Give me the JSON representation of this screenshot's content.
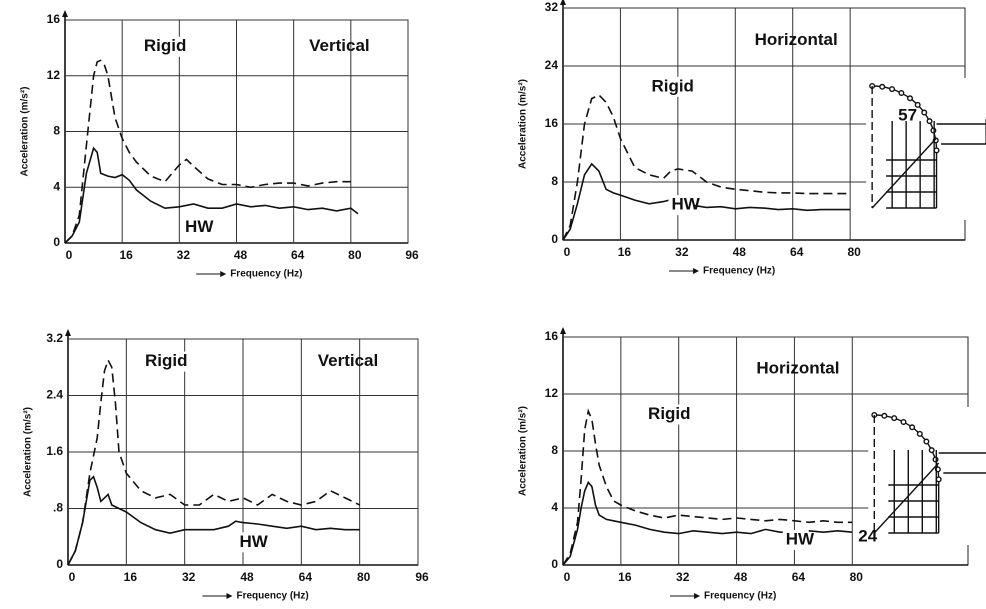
{
  "chart_data": [
    {
      "type": "line",
      "title": "Vertical",
      "xlabel": "Frequency (Hz)",
      "ylabel": "Acceleration (m/s²)",
      "xlim": [
        0,
        96
      ],
      "xticks": [
        0,
        16,
        32,
        48,
        64,
        80,
        96
      ],
      "ylim": [
        0,
        16
      ],
      "yticks": [
        0,
        4,
        8,
        12,
        16
      ],
      "grid": true,
      "series": [
        {
          "name": "Rigid",
          "color": "#111111",
          "linestyle": "dashed",
          "x": [
            0,
            2,
            4,
            6,
            8,
            9,
            10,
            11,
            12,
            14,
            16,
            18,
            20,
            24,
            28,
            32,
            34,
            36,
            40,
            44,
            48,
            52,
            56,
            60,
            64,
            68,
            72,
            76,
            80
          ],
          "values": [
            0,
            0.5,
            2,
            7,
            12,
            13,
            13.1,
            12.8,
            12,
            9,
            7.5,
            6.5,
            5.8,
            4.8,
            4.4,
            5.6,
            6,
            5.5,
            4.6,
            4.2,
            4.2,
            4.0,
            4.2,
            4.3,
            4.3,
            4.1,
            4.3,
            4.4,
            4.4
          ]
        },
        {
          "name": "HW",
          "color": "#111111",
          "linestyle": "solid",
          "x": [
            0,
            2,
            4,
            6,
            8,
            9,
            10,
            12,
            14,
            16,
            18,
            20,
            24,
            28,
            32,
            36,
            40,
            44,
            48,
            52,
            56,
            60,
            64,
            68,
            72,
            76,
            80,
            82
          ],
          "values": [
            0,
            0.5,
            1.5,
            5,
            6.8,
            6.5,
            5,
            4.8,
            4.7,
            4.9,
            4.5,
            3.8,
            3,
            2.5,
            2.6,
            2.8,
            2.5,
            2.5,
            2.8,
            2.6,
            2.7,
            2.5,
            2.6,
            2.4,
            2.5,
            2.3,
            2.5,
            2.1
          ]
        }
      ]
    },
    {
      "type": "line",
      "title": "Horizontal",
      "xlabel": "Frequency (Hz)",
      "ylabel": "Acceleration (m/s²)",
      "xlim": [
        0,
        112
      ],
      "xticks": [
        0,
        16,
        32,
        48,
        64,
        80
      ],
      "ylim": [
        0,
        32
      ],
      "yticks": [
        0,
        8,
        16,
        24,
        32
      ],
      "grid": true,
      "inset_label": "57",
      "series": [
        {
          "name": "Rigid",
          "color": "#111111",
          "linestyle": "dashed",
          "x": [
            0,
            2,
            4,
            6,
            8,
            10,
            12,
            14,
            16,
            18,
            20,
            24,
            28,
            30,
            32,
            36,
            40,
            44,
            48,
            52,
            56,
            60,
            64,
            68,
            72,
            80
          ],
          "values": [
            0,
            2,
            8,
            16,
            19.5,
            20,
            19,
            17,
            14,
            12,
            10,
            9,
            8.5,
            9.5,
            9.8,
            9.5,
            8,
            7.3,
            7,
            6.8,
            6.6,
            6.5,
            6.5,
            6.4,
            6.4,
            6.4
          ]
        },
        {
          "name": "HW",
          "color": "#111111",
          "linestyle": "solid",
          "x": [
            0,
            2,
            4,
            6,
            8,
            10,
            12,
            14,
            16,
            20,
            24,
            28,
            32,
            36,
            40,
            44,
            48,
            52,
            56,
            60,
            64,
            68,
            72,
            76,
            80
          ],
          "values": [
            0,
            1.5,
            5,
            9,
            10.5,
            9.5,
            7,
            6.5,
            6.2,
            5.5,
            5,
            5.3,
            5.8,
            4.8,
            4.5,
            4.6,
            4.3,
            4.5,
            4.4,
            4.2,
            4.3,
            4.1,
            4.2,
            4.2,
            4.2
          ]
        }
      ]
    },
    {
      "type": "line",
      "title": "Vertical",
      "xlabel": "Frequency (Hz)",
      "ylabel": "Acceleration (m/s²)",
      "xlim": [
        0,
        96
      ],
      "xticks": [
        0,
        16,
        32,
        48,
        64,
        80,
        96
      ],
      "ylim": [
        0,
        3.2
      ],
      "yticks": [
        0,
        {
          "value": 0.8,
          "label": ".8"
        },
        1.6,
        2.4,
        3.2
      ],
      "grid": true,
      "series": [
        {
          "name": "Rigid",
          "color": "#111111",
          "linestyle": "dashed",
          "x": [
            0,
            2,
            4,
            6,
            8,
            9,
            10,
            11,
            12,
            13,
            14,
            16,
            20,
            24,
            28,
            32,
            36,
            40,
            44,
            48,
            52,
            56,
            60,
            64,
            68,
            72,
            76,
            80
          ],
          "values": [
            0,
            0.2,
            0.6,
            1.3,
            1.8,
            2.3,
            2.75,
            2.9,
            2.8,
            2.3,
            1.6,
            1.3,
            1.05,
            0.95,
            1.0,
            0.85,
            0.85,
            1.0,
            0.9,
            0.95,
            0.85,
            1.0,
            0.9,
            0.85,
            0.9,
            1.05,
            0.95,
            0.85
          ]
        },
        {
          "name": "HW",
          "color": "#111111",
          "linestyle": "solid",
          "x": [
            0,
            2,
            4,
            6,
            7,
            8,
            9,
            10,
            11,
            12,
            14,
            16,
            20,
            24,
            28,
            32,
            36,
            40,
            44,
            46,
            48,
            52,
            56,
            60,
            64,
            68,
            72,
            76,
            80
          ],
          "values": [
            0,
            0.2,
            0.6,
            1.2,
            1.25,
            1.1,
            0.9,
            0.95,
            1.0,
            0.85,
            0.8,
            0.75,
            0.6,
            0.5,
            0.45,
            0.5,
            0.5,
            0.5,
            0.55,
            0.62,
            0.6,
            0.58,
            0.55,
            0.52,
            0.55,
            0.5,
            0.52,
            0.5,
            0.5
          ]
        }
      ]
    },
    {
      "type": "line",
      "title": "Horizontal",
      "xlabel": "Frequency (Hz)",
      "ylabel": "Acceleration (m/s²)",
      "xlim": [
        0,
        112
      ],
      "xticks": [
        0,
        16,
        32,
        48,
        64,
        80
      ],
      "ylim": [
        0,
        16
      ],
      "yticks": [
        0,
        4,
        8,
        12,
        16
      ],
      "grid": true,
      "inset_label": "24",
      "series": [
        {
          "name": "Rigid",
          "color": "#111111",
          "linestyle": "dashed",
          "x": [
            0,
            2,
            4,
            5,
            6,
            7,
            8,
            9,
            10,
            12,
            14,
            16,
            20,
            24,
            28,
            32,
            36,
            40,
            44,
            48,
            52,
            56,
            60,
            64,
            68,
            72,
            76,
            80
          ],
          "values": [
            0,
            0.8,
            3,
            6,
            9.5,
            10.8,
            10.2,
            8.5,
            7,
            5.5,
            4.5,
            4.2,
            3.8,
            3.5,
            3.3,
            3.5,
            3.4,
            3.3,
            3.2,
            3.3,
            3.2,
            3.1,
            3.2,
            3.1,
            3.0,
            3.1,
            3.0,
            3.0
          ]
        },
        {
          "name": "HW",
          "color": "#111111",
          "linestyle": "solid",
          "x": [
            0,
            2,
            4,
            5,
            6,
            7,
            8,
            9,
            10,
            12,
            14,
            16,
            20,
            24,
            28,
            32,
            36,
            40,
            44,
            48,
            52,
            56,
            60,
            64,
            68,
            72,
            76,
            80
          ],
          "values": [
            0,
            0.6,
            2.5,
            4,
            5.2,
            5.8,
            5.5,
            4.2,
            3.5,
            3.2,
            3.1,
            3.0,
            2.8,
            2.5,
            2.3,
            2.2,
            2.4,
            2.3,
            2.2,
            2.3,
            2.2,
            2.5,
            2.3,
            2.3,
            2.4,
            2.3,
            2.4,
            2.3
          ]
        }
      ]
    }
  ]
}
